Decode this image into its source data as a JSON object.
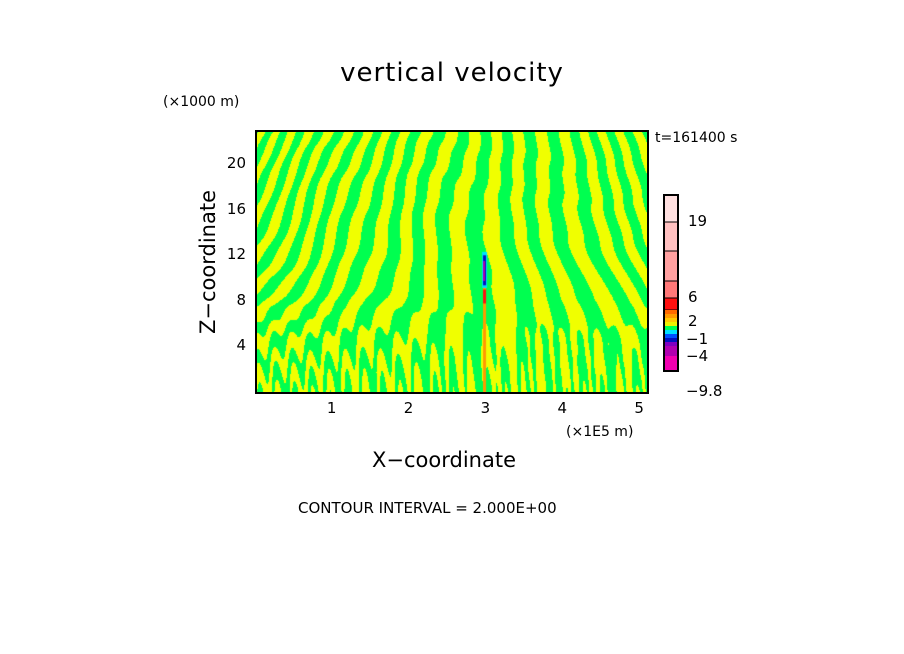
{
  "chart_data": {
    "type": "heatmap",
    "title": "vertical velocity",
    "xlabel": "X−coordinate",
    "ylabel": "Z−coordinate",
    "x_units": "(×1E5 m)",
    "z_units": "(×1000 m)",
    "time_label": "t=161400 s",
    "footer": "CONTOUR INTERVAL = 2.000E+00",
    "xlim": [
      0,
      5.1
    ],
    "ylim": [
      0,
      23
    ],
    "x_ticks": [
      "1",
      "2",
      "3",
      "4",
      "5"
    ],
    "x_tick_values": [
      1,
      2,
      3,
      4,
      5
    ],
    "y_ticks": [
      "4",
      "8",
      "12",
      "16",
      "20"
    ],
    "y_tick_values": [
      4,
      8,
      12,
      16,
      20
    ],
    "grid": false,
    "colorbar": {
      "labels": [
        "19",
        "6",
        "2",
        "−1",
        "−4",
        "−9.8"
      ],
      "label_values": [
        19,
        6,
        2,
        -1,
        -4,
        -9.8
      ],
      "colors_top_to_bottom": [
        "#ffe0e0",
        "#ffc0c0",
        "#ffa0a0",
        "#ff7878",
        "#ff1010",
        "#ff6a00",
        "#ff9a00",
        "#ffc800",
        "#f0f000",
        "#00ff50",
        "#00e0ff",
        "#0050ff",
        "#0010c0",
        "#8000c0",
        "#b000b0",
        "#f000b0"
      ],
      "range": [
        -9.8,
        25
      ]
    },
    "dominant_colors": {
      "positive_small": "#f0ff00",
      "negative_small": "#00ff50"
    }
  }
}
